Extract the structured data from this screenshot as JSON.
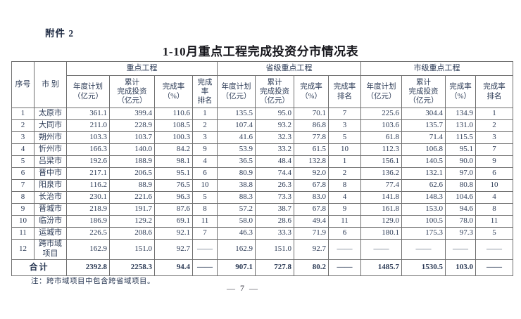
{
  "page": {
    "attachment_label": "附件 2",
    "title": "1-10月重点工程完成投资分市情况表",
    "footnote": "注：跨市域项目中包含跨省域项目。",
    "page_number": "— 7 —"
  },
  "colors": {
    "text": "#2b3a55",
    "border": "#6f6f6f",
    "title": "#15151b"
  },
  "table": {
    "corner_headers": [
      "序号",
      "市 别"
    ],
    "group_headers": [
      "重点工程",
      "省级重点工程",
      "市级重点工程"
    ],
    "sub_headers": [
      "年度计划\n（亿元）",
      "累计\n完成投资\n（亿元）",
      "完成率\n（%）",
      "完成率\n排名"
    ],
    "rows": [
      {
        "no": "1",
        "city": "太原市",
        "values": [
          "361.1",
          "399.4",
          "110.6",
          "1",
          "135.5",
          "95.0",
          "70.1",
          "7",
          "225.6",
          "304.4",
          "134.9",
          "1"
        ]
      },
      {
        "no": "2",
        "city": "大同市",
        "values": [
          "211.0",
          "228.9",
          "108.5",
          "2",
          "107.4",
          "93.2",
          "86.8",
          "3",
          "103.6",
          "135.7",
          "131.0",
          "2"
        ]
      },
      {
        "no": "3",
        "city": "朔州市",
        "values": [
          "103.3",
          "103.7",
          "100.3",
          "3",
          "41.6",
          "32.3",
          "77.8",
          "5",
          "61.8",
          "71.4",
          "115.5",
          "3"
        ]
      },
      {
        "no": "4",
        "city": "忻州市",
        "values": [
          "166.3",
          "140.0",
          "84.2",
          "9",
          "53.9",
          "33.2",
          "61.5",
          "10",
          "112.3",
          "106.8",
          "95.1",
          "7"
        ]
      },
      {
        "no": "5",
        "city": "吕梁市",
        "values": [
          "192.6",
          "188.9",
          "98.1",
          "4",
          "36.5",
          "48.4",
          "132.8",
          "1",
          "156.1",
          "140.5",
          "90.0",
          "9"
        ]
      },
      {
        "no": "6",
        "city": "晋中市",
        "values": [
          "217.1",
          "206.5",
          "95.1",
          "6",
          "80.9",
          "74.4",
          "92.0",
          "2",
          "136.2",
          "132.1",
          "97.0",
          "6"
        ]
      },
      {
        "no": "7",
        "city": "阳泉市",
        "values": [
          "116.2",
          "88.9",
          "76.5",
          "10",
          "38.8",
          "26.3",
          "67.8",
          "8",
          "77.4",
          "62.6",
          "80.8",
          "10"
        ]
      },
      {
        "no": "8",
        "city": "长治市",
        "values": [
          "230.1",
          "221.6",
          "96.3",
          "5",
          "88.3",
          "73.3",
          "83.0",
          "4",
          "141.8",
          "148.3",
          "104.6",
          "4"
        ]
      },
      {
        "no": "9",
        "city": "晋城市",
        "values": [
          "218.9",
          "191.7",
          "87.6",
          "8",
          "57.2",
          "38.7",
          "67.8",
          "9",
          "161.8",
          "153.0",
          "94.6",
          "8"
        ]
      },
      {
        "no": "10",
        "city": "临汾市",
        "values": [
          "186.9",
          "129.2",
          "69.1",
          "11",
          "58.0",
          "28.6",
          "49.4",
          "11",
          "129.0",
          "100.5",
          "78.0",
          "11"
        ]
      },
      {
        "no": "11",
        "city": "运城市",
        "values": [
          "226.5",
          "208.6",
          "92.1",
          "7",
          "46.3",
          "33.3",
          "71.9",
          "6",
          "180.1",
          "175.3",
          "97.3",
          "5"
        ]
      },
      {
        "no": "12",
        "city": "跨市域\n项目",
        "values": [
          "162.9",
          "151.0",
          "92.7",
          "——",
          "162.9",
          "151.0",
          "92.7",
          "——",
          "——",
          "——",
          "——",
          "——"
        ]
      }
    ],
    "total_label": "合计",
    "total_values": [
      "2392.8",
      "2258.3",
      "94.4",
      "——",
      "907.1",
      "727.8",
      "80.2",
      "——",
      "1485.7",
      "1530.5",
      "103.0",
      "——"
    ]
  }
}
